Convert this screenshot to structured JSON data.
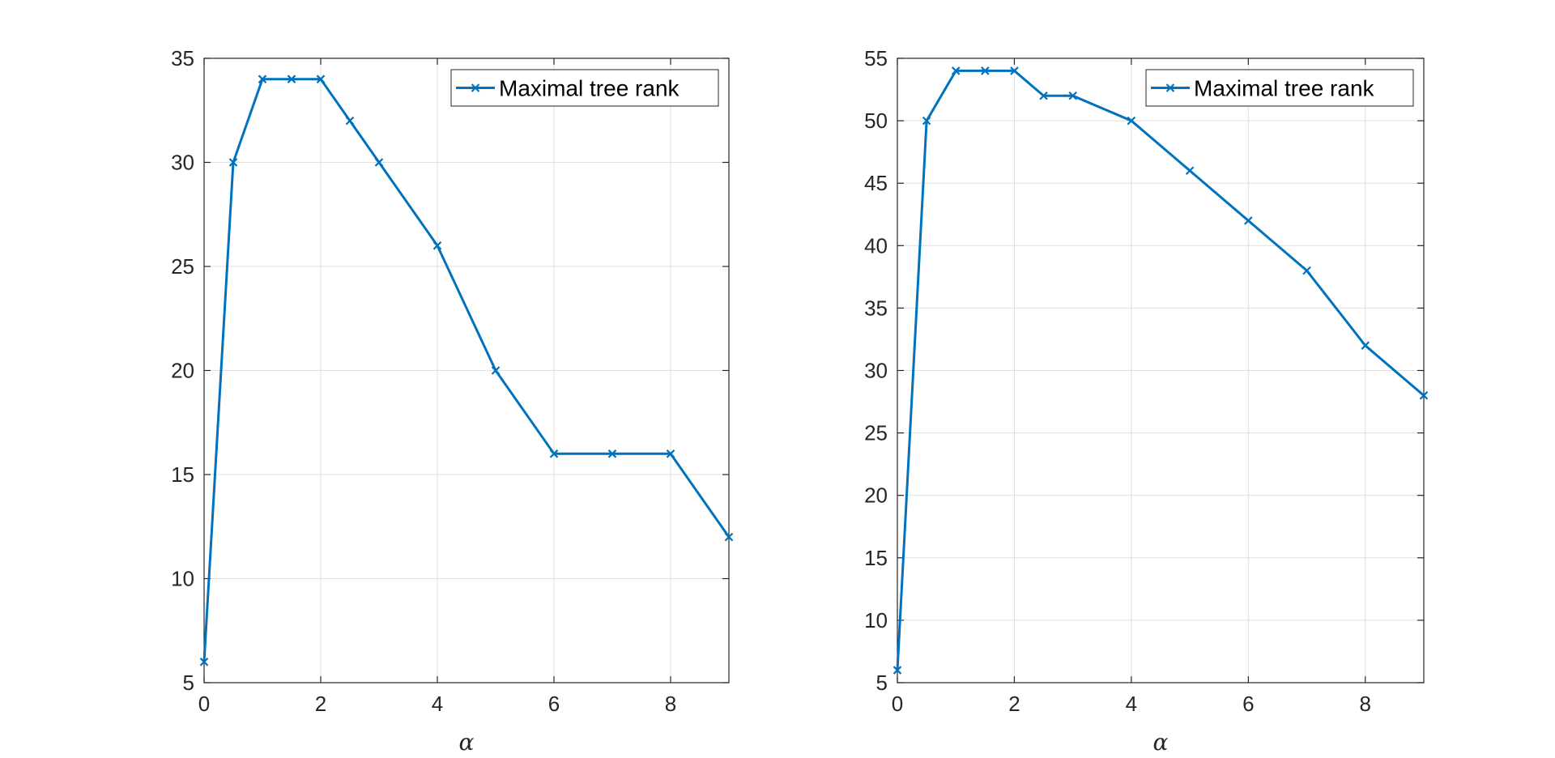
{
  "chart_data": [
    {
      "type": "line",
      "title": "",
      "xlabel": "α",
      "ylabel": "",
      "xlim": [
        0,
        9
      ],
      "ylim": [
        5,
        35
      ],
      "xticks": [
        0,
        2,
        4,
        6,
        8
      ],
      "yticks": [
        5,
        10,
        15,
        20,
        25,
        30,
        35
      ],
      "grid": true,
      "legend_position": "top-right",
      "series": [
        {
          "name": "Maximal tree rank",
          "color": "#0072BD",
          "marker": "x",
          "x": [
            0,
            0.5,
            1,
            1.5,
            2,
            2.5,
            3,
            4,
            5,
            6,
            7,
            8,
            9
          ],
          "y": [
            6,
            30,
            34,
            34,
            34,
            32,
            30,
            26,
            20,
            16,
            16,
            16,
            12
          ]
        }
      ]
    },
    {
      "type": "line",
      "title": "",
      "xlabel": "α",
      "ylabel": "",
      "xlim": [
        0,
        9
      ],
      "ylim": [
        5,
        55
      ],
      "xticks": [
        0,
        2,
        4,
        6,
        8
      ],
      "yticks": [
        5,
        10,
        15,
        20,
        25,
        30,
        35,
        40,
        45,
        50,
        55
      ],
      "grid": true,
      "legend_position": "top-right",
      "series": [
        {
          "name": "Maximal tree rank",
          "color": "#0072BD",
          "marker": "x",
          "x": [
            0,
            0.5,
            1,
            1.5,
            2,
            2.5,
            3,
            4,
            5,
            6,
            7,
            8,
            9
          ],
          "y": [
            6,
            50,
            54,
            54,
            54,
            52,
            52,
            50,
            46,
            42,
            38,
            32,
            28
          ]
        }
      ]
    }
  ]
}
